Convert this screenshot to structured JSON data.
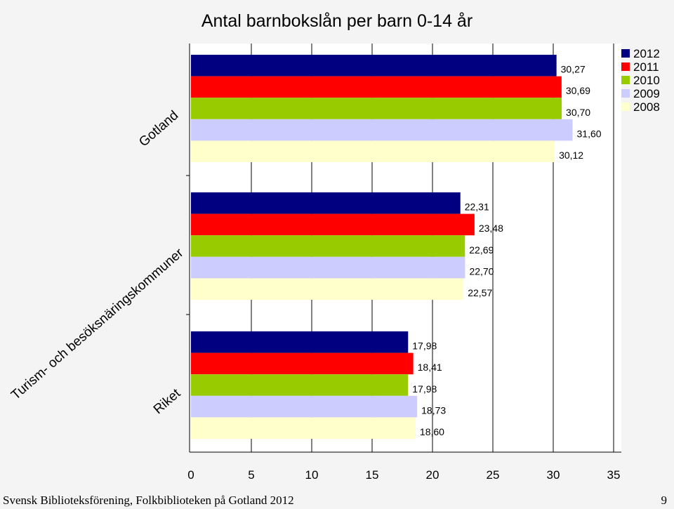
{
  "chart_data": {
    "type": "bar",
    "orientation": "horizontal",
    "title": "Antal barnbokslån per barn 0-14 år",
    "categories": [
      "Gotland",
      "Turism- och besöksnäringskommuner",
      "Riket"
    ],
    "series": [
      {
        "name": "2012",
        "color": "#000080",
        "values": [
          30.27,
          22.31,
          17.98
        ],
        "labels": [
          "30,27",
          "22,31",
          "17,98"
        ]
      },
      {
        "name": "2011",
        "color": "#ff0000",
        "values": [
          30.69,
          23.48,
          18.41
        ],
        "labels": [
          "30,69",
          "23,48",
          "18,41"
        ]
      },
      {
        "name": "2010",
        "color": "#99cc00",
        "values": [
          30.7,
          22.69,
          17.98
        ],
        "labels": [
          "30,70",
          "22,69",
          "17,98"
        ]
      },
      {
        "name": "2009",
        "color": "#ccccff",
        "values": [
          31.6,
          22.7,
          18.73
        ],
        "labels": [
          "31,60",
          "22,70",
          "18,73"
        ]
      },
      {
        "name": "2008",
        "color": "#ffffcc",
        "values": [
          30.12,
          22.57,
          18.6
        ],
        "labels": [
          "30,12",
          "22,57",
          "18,60"
        ]
      }
    ],
    "xlim": [
      0,
      35
    ],
    "xticks": [
      "0",
      "5",
      "10",
      "15",
      "20",
      "25",
      "30",
      "35"
    ],
    "grid": "vertical",
    "legend": "top-right"
  },
  "footer": {
    "source": "Svensk Biblioteksförening, Folkbiblioteken på Gotland 2012",
    "page_number": "9"
  }
}
